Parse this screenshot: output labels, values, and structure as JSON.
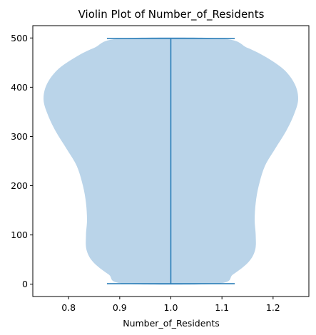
{
  "chart_data": {
    "type": "violin",
    "title": "Violin Plot of Number_of_Residents",
    "xlabel": "Number_of_Residents",
    "ylabel": "",
    "xlim": [
      0.73,
      1.27
    ],
    "ylim": [
      -25,
      525
    ],
    "xticks": [
      0.8,
      0.9,
      1.0,
      1.1,
      1.2
    ],
    "xtick_labels": [
      "0.8",
      "0.9",
      "1.0",
      "1.1",
      "1.2"
    ],
    "yticks": [
      0,
      100,
      200,
      300,
      400,
      500
    ],
    "ytick_labels": [
      "0",
      "100",
      "200",
      "300",
      "400",
      "500"
    ],
    "grid": false,
    "position": 1.0,
    "min": 1,
    "max": 499,
    "cap_width": 0.25,
    "body_color": "#bad4e9",
    "line_color": "#1f77b4",
    "density_profile": [
      {
        "y": 1,
        "half_width": 0.09
      },
      {
        "y": 20,
        "half_width": 0.122
      },
      {
        "y": 45,
        "half_width": 0.152
      },
      {
        "y": 70,
        "half_width": 0.165
      },
      {
        "y": 100,
        "half_width": 0.166
      },
      {
        "y": 130,
        "half_width": 0.164
      },
      {
        "y": 165,
        "half_width": 0.166
      },
      {
        "y": 200,
        "half_width": 0.172
      },
      {
        "y": 240,
        "half_width": 0.184
      },
      {
        "y": 275,
        "half_width": 0.204
      },
      {
        "y": 310,
        "half_width": 0.225
      },
      {
        "y": 345,
        "half_width": 0.241
      },
      {
        "y": 375,
        "half_width": 0.249
      },
      {
        "y": 405,
        "half_width": 0.243
      },
      {
        "y": 435,
        "half_width": 0.222
      },
      {
        "y": 460,
        "half_width": 0.188
      },
      {
        "y": 480,
        "half_width": 0.15
      },
      {
        "y": 499,
        "half_width": 0.098
      }
    ]
  }
}
